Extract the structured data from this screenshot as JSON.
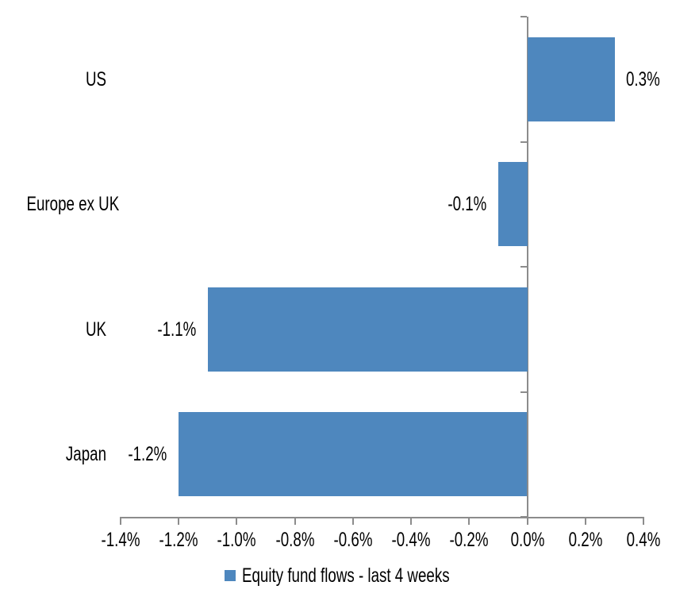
{
  "chart_data": {
    "type": "bar",
    "orientation": "horizontal",
    "categories": [
      "US",
      "Europe ex UK",
      "UK",
      "Japan"
    ],
    "values": [
      0.3,
      -0.1,
      -1.1,
      -1.2
    ],
    "bar_labels": [
      "0.3%",
      "-0.1%",
      "-1.1%",
      "-1.2%"
    ],
    "legend_label": "Equity fund flows - last 4 weeks",
    "legend_position": "bottom-center",
    "xlim": [
      -1.4,
      0.4
    ],
    "xticks": [
      -1.4,
      -1.2,
      -1.0,
      -0.8,
      -0.6,
      -0.4,
      -0.2,
      0.0,
      0.2,
      0.4
    ],
    "xtick_labels": [
      "-1.4%",
      "-1.2%",
      "-1.0%",
      "-0.8%",
      "-0.6%",
      "-0.4%",
      "-0.2%",
      "0.0%",
      "0.2%",
      "0.4%"
    ],
    "grid": false,
    "title": "",
    "xlabel": "",
    "ylabel": "",
    "bar_color": "#4E87BE",
    "axis_color": "#8C8C8C",
    "text_color": "#000000",
    "background_color": "#FFFFFF"
  }
}
